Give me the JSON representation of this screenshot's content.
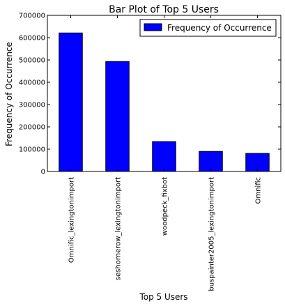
{
  "chart_data": {
    "type": "bar",
    "title": "Bar Plot of Top 5 Users",
    "xlabel": "Top 5 Users",
    "ylabel": "Frequency of Occurrence",
    "categories": [
      "Omnific_lexingtonimport",
      "seshornerow_lexingtonimport",
      "woodpeck_fixbot",
      "buspainter2005_lexingtonimport",
      "Omnific"
    ],
    "series": [
      {
        "name": "Frequency of Occurrence",
        "values": [
          621000,
          493000,
          134000,
          90000,
          81000
        ],
        "color": "#0000ff"
      }
    ],
    "ylim": [
      0,
      700000
    ],
    "yticks": [
      0,
      100000,
      200000,
      300000,
      400000,
      500000,
      600000,
      700000
    ],
    "ytick_labels": [
      "0",
      "100000",
      "200000",
      "300000",
      "400000",
      "500000",
      "600000",
      "700000"
    ],
    "grid": false,
    "legend_position": "top-right"
  }
}
